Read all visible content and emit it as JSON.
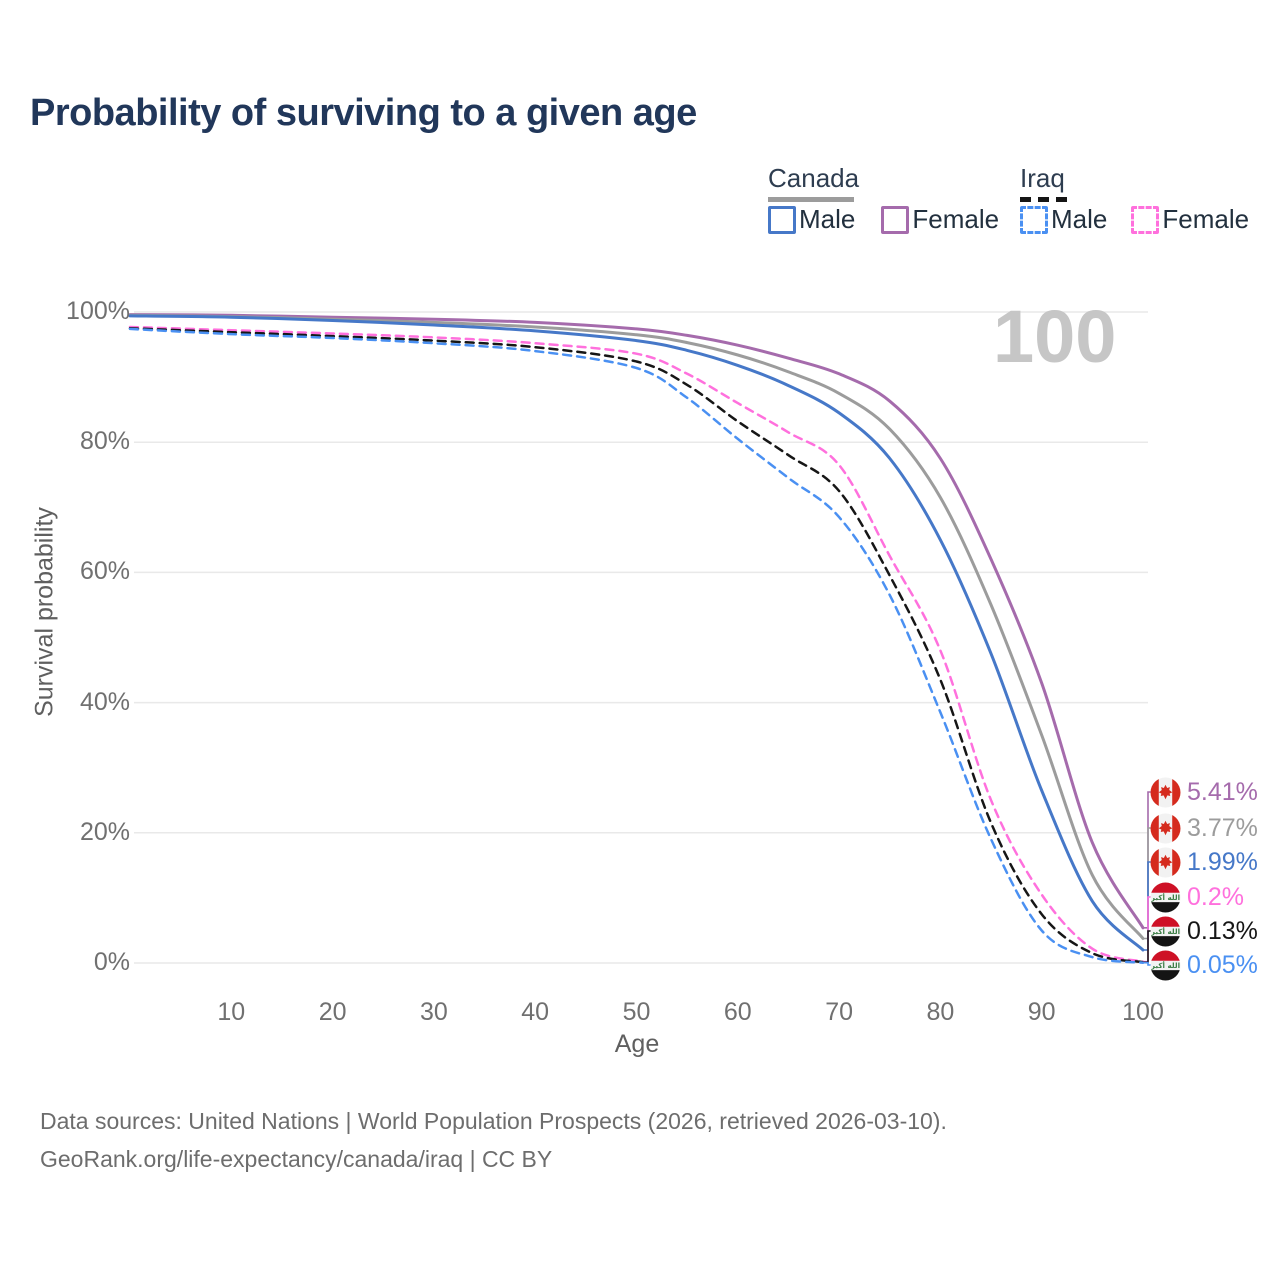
{
  "title": "Probability of surviving to a given age",
  "watermark": "100",
  "legend": {
    "canada": {
      "label": "Canada",
      "male": "Male",
      "female": "Female"
    },
    "iraq": {
      "label": "Iraq",
      "male": "Male",
      "female": "Female"
    }
  },
  "axes": {
    "x_label": "Age",
    "y_label": "Survival probability",
    "x_ticks": [
      10,
      20,
      30,
      40,
      50,
      60,
      70,
      80,
      90,
      100
    ],
    "y_ticks": [
      "100%",
      "80%",
      "60%",
      "40%",
      "20%",
      "0%"
    ]
  },
  "chart_data": {
    "type": "line",
    "title": "Probability of surviving to a given age",
    "xlabel": "Age",
    "ylabel": "Survival probability",
    "xlim": [
      0,
      100
    ],
    "ylim": [
      0,
      100
    ],
    "grid": "horizontal",
    "legend_position": "top-right",
    "hover_age": 100,
    "ages": [
      0,
      10,
      20,
      30,
      40,
      50,
      55,
      60,
      65,
      70,
      75,
      80,
      85,
      90,
      95,
      100
    ],
    "series": [
      {
        "name": "Canada Female",
        "country": "Canada",
        "sex": "Female",
        "color": "#a56bac",
        "dash": "solid",
        "flag": "canada",
        "end_label": "5.41%",
        "values": [
          99.6,
          99.5,
          99.2,
          98.9,
          98.4,
          97.4,
          96.4,
          94.9,
          92.9,
          90.5,
          86.3,
          77.5,
          62.0,
          43.0,
          18.5,
          5.41
        ]
      },
      {
        "name": "Canada Both sexes",
        "country": "Canada",
        "sex": "Both",
        "color": "#9c9c9c",
        "dash": "solid",
        "flag": "canada",
        "end_label": "3.77%",
        "values": [
          99.5,
          99.3,
          98.9,
          98.4,
          97.7,
          96.5,
          95.3,
          93.4,
          90.8,
          87.5,
          82.0,
          71.5,
          55.0,
          35.0,
          13.5,
          3.77
        ]
      },
      {
        "name": "Canada Male",
        "country": "Canada",
        "sex": "Male",
        "color": "#4678c8",
        "dash": "solid",
        "flag": "canada",
        "end_label": "1.99%",
        "values": [
          99.4,
          99.2,
          98.7,
          98.0,
          97.1,
          95.6,
          94.1,
          91.8,
          88.7,
          84.5,
          77.5,
          65.0,
          47.5,
          26.5,
          9.5,
          1.99
        ]
      },
      {
        "name": "Iraq Female",
        "country": "Iraq",
        "sex": "Female",
        "color": "#ff70dd",
        "dash": "dashed",
        "flag": "iraq",
        "end_label": "0.2%",
        "values": [
          97.7,
          97.2,
          96.7,
          96.1,
          95.2,
          93.6,
          90.5,
          86.0,
          81.5,
          76.5,
          62.5,
          48.0,
          25.0,
          10.5,
          2.2,
          0.2
        ]
      },
      {
        "name": "Iraq Both sexes",
        "country": "Iraq",
        "sex": "Both",
        "color": "#161616",
        "dash": "dashed",
        "flag": "iraq",
        "end_label": "0.13%",
        "values": [
          97.5,
          96.9,
          96.3,
          95.6,
          94.6,
          92.4,
          88.8,
          83.2,
          78.0,
          72.5,
          59.5,
          43.5,
          21.5,
          7.5,
          1.5,
          0.13
        ]
      },
      {
        "name": "Iraq Male",
        "country": "Iraq",
        "sex": "Male",
        "color": "#4a90f2",
        "dash": "dashed",
        "flag": "iraq",
        "end_label": "0.05%",
        "values": [
          97.4,
          96.6,
          96.0,
          95.2,
          94.0,
          91.4,
          86.8,
          80.5,
          74.5,
          68.5,
          56.5,
          38.5,
          19.0,
          5.0,
          0.9,
          0.05
        ]
      }
    ]
  },
  "footer": {
    "line1": "Data sources: United Nations | World Population Prospects (2026, retrieved 2026-03-10).",
    "line2": "GeoRank.org/life-expectancy/canada/iraq | CC BY"
  }
}
